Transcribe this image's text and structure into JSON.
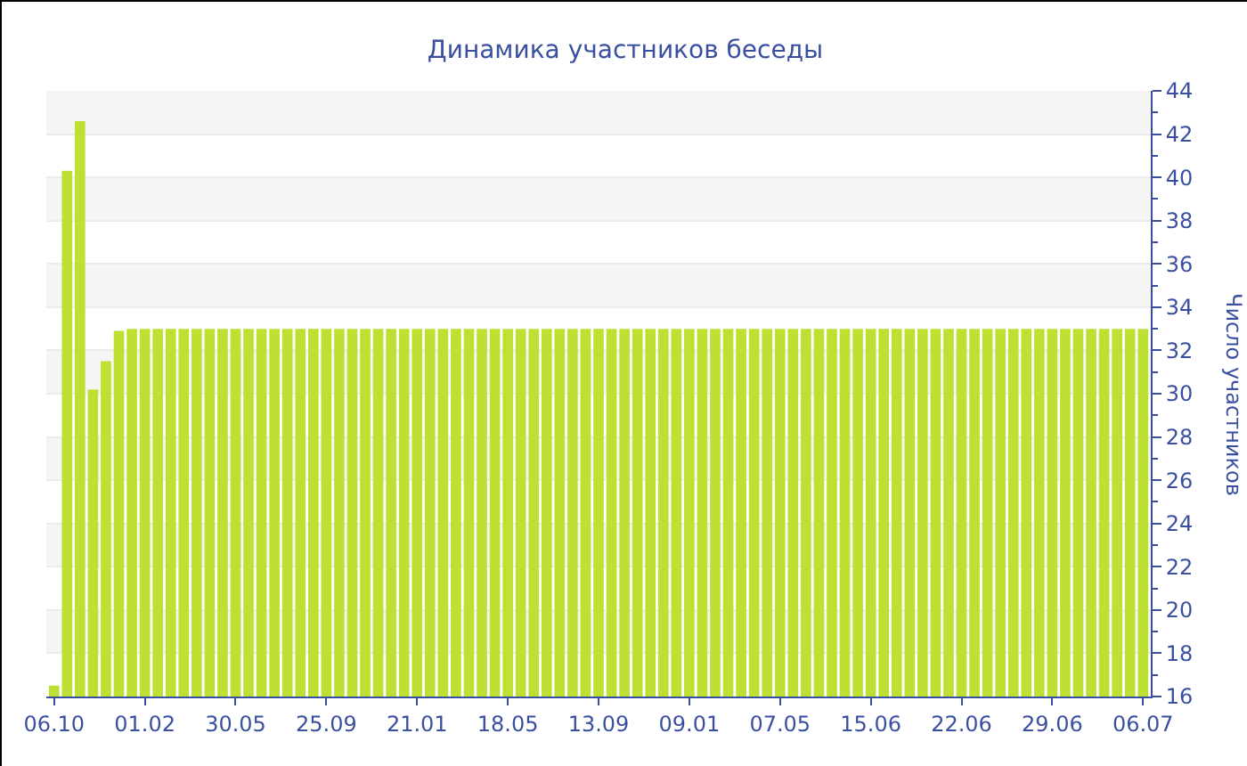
{
  "chart_data": {
    "type": "bar",
    "title": "Динамика участников беседы",
    "ylabel": "Число участников",
    "categories": [
      "06.10",
      null,
      null,
      null,
      null,
      null,
      null,
      "01.02",
      null,
      null,
      null,
      null,
      null,
      null,
      "30.05",
      null,
      null,
      null,
      null,
      null,
      null,
      "25.09",
      null,
      null,
      null,
      null,
      null,
      null,
      "21.01",
      null,
      null,
      null,
      null,
      null,
      null,
      "18.05",
      null,
      null,
      null,
      null,
      null,
      null,
      "13.09",
      null,
      null,
      null,
      null,
      null,
      null,
      "09.01",
      null,
      null,
      null,
      null,
      null,
      null,
      "07.05",
      null,
      null,
      null,
      null,
      null,
      null,
      "15.06",
      null,
      null,
      null,
      null,
      null,
      null,
      "22.06",
      null,
      null,
      null,
      null,
      null,
      null,
      "29.06",
      null,
      null,
      null,
      null,
      null,
      null,
      "06.07"
    ],
    "values": [
      16.5,
      40.3,
      42.6,
      30.2,
      31.5,
      32.9,
      33,
      33,
      33,
      33,
      33,
      33,
      33,
      33,
      33,
      33,
      33,
      33,
      33,
      33,
      33,
      33,
      33,
      33,
      33,
      33,
      33,
      33,
      33,
      33,
      33,
      33,
      33,
      33,
      33,
      33,
      33,
      33,
      33,
      33,
      33,
      33,
      33,
      33,
      33,
      33,
      33,
      33,
      33,
      33,
      33,
      33,
      33,
      33,
      33,
      33,
      33,
      33,
      33,
      33,
      33,
      33,
      33,
      33,
      33,
      33,
      33,
      33,
      33,
      33,
      33,
      33,
      33,
      33,
      33,
      33,
      33,
      33,
      33,
      33,
      33,
      33,
      33,
      33,
      33
    ],
    "color": "#bde033",
    "ylim": [
      16,
      44
    ],
    "yticks": [
      16,
      18,
      20,
      22,
      24,
      26,
      28,
      30,
      32,
      34,
      36,
      38,
      40,
      42,
      44
    ],
    "grid": true
  }
}
